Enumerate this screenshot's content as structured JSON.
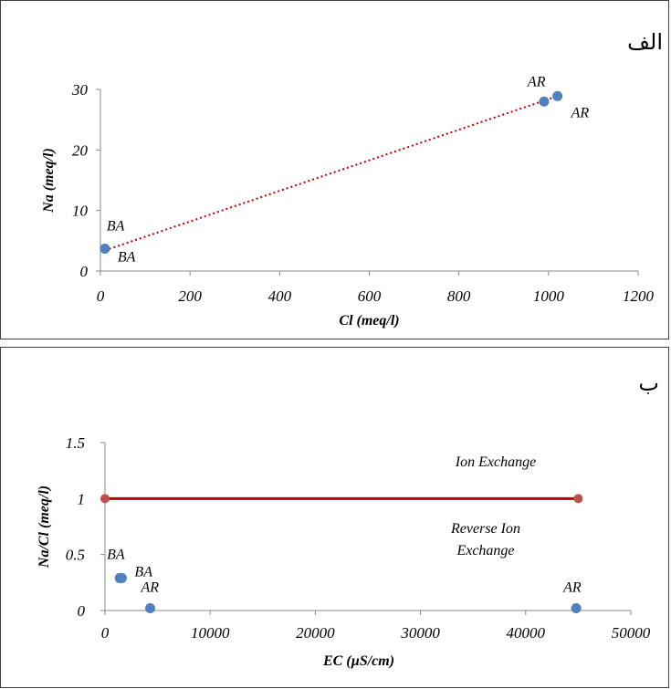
{
  "chart_data": [
    {
      "type": "scatter",
      "panel_label": "الف",
      "xlabel": "Cl (meq/l)",
      "ylabel": "Na (meq/l)",
      "xlim": [
        0,
        1200
      ],
      "ylim": [
        0,
        30
      ],
      "xticks": [
        0,
        200,
        400,
        600,
        800,
        1000,
        1200
      ],
      "yticks": [
        0,
        10,
        20,
        30
      ],
      "points": [
        {
          "x": 10,
          "y": 3.7,
          "label": "BA"
        },
        {
          "x": 990,
          "y": 28.0,
          "label": "AR"
        },
        {
          "x": 1020,
          "y": 28.9,
          "label": "AR"
        }
      ],
      "extra_labels": [
        "BA",
        "AR"
      ],
      "trendline": {
        "style": "dotted",
        "color": "#c00000",
        "x": [
          10,
          1020
        ],
        "y": [
          3.4,
          28.9
        ]
      },
      "point_color": "#4f81bd",
      "grid": false
    },
    {
      "type": "scatter",
      "panel_label": "ب",
      "xlabel": "EC (µS/cm)",
      "ylabel": "Na/Cl (meq/l)",
      "xlim": [
        0,
        50000
      ],
      "ylim": [
        0,
        1.5
      ],
      "xticks": [
        0,
        10000,
        20000,
        30000,
        40000,
        50000
      ],
      "yticks": [
        0,
        0.5,
        1,
        1.5
      ],
      "points": [
        {
          "x": 1400,
          "y": 0.29,
          "label": "BA"
        },
        {
          "x": 1600,
          "y": 0.29,
          "label": "BA"
        },
        {
          "x": 4300,
          "y": 0.02,
          "label": "AR"
        },
        {
          "x": 44800,
          "y": 0.02,
          "label": "AR"
        }
      ],
      "reference_line": {
        "y": 1,
        "x": [
          0,
          45000
        ],
        "color": "#c00000"
      },
      "region_labels": [
        "Ion Exchange",
        "Reverse Ion",
        "Exchange"
      ],
      "point_color": "#4f81bd",
      "grid": false
    }
  ]
}
